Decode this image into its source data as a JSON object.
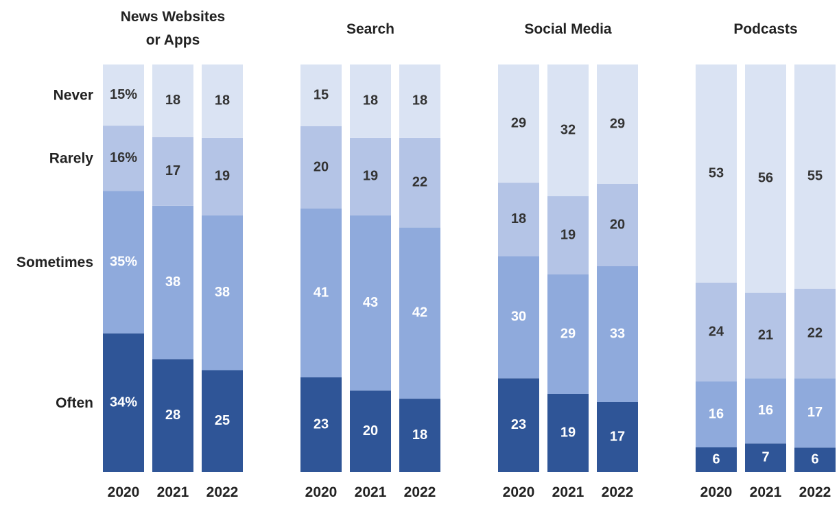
{
  "chart_data": {
    "type": "bar",
    "stacked": true,
    "categories_order_bottom_to_top": [
      "Often",
      "Sometimes",
      "Rarely",
      "Never"
    ],
    "colors": {
      "Often": "#2f5597",
      "Sometimes": "#8faadc",
      "Rarely": "#b4c4e6",
      "Never": "#dae3f3"
    },
    "label_colors": {
      "Often": "#ffffff",
      "Sometimes": "#ffffff",
      "Rarely": "#333333",
      "Never": "#333333"
    },
    "row_labels": [
      {
        "key": "Never",
        "text": "Never",
        "panel": 0,
        "year": 0
      },
      {
        "key": "Rarely",
        "text": "Rarely",
        "panel": 0,
        "year": 0
      },
      {
        "key": "Sometimes",
        "text": "Sometimes",
        "panel": 0,
        "year": 0
      },
      {
        "key": "Often",
        "text": "Often",
        "panel": 0,
        "year": 0
      }
    ],
    "panels": [
      {
        "title_lines": [
          "News Websites",
          "or Apps"
        ],
        "years": [
          "2020",
          "2021",
          "2022"
        ],
        "series": [
          {
            "name": "Often",
            "values": [
              34,
              28,
              25
            ]
          },
          {
            "name": "Sometimes",
            "values": [
              35,
              38,
              38
            ]
          },
          {
            "name": "Rarely",
            "values": [
              16,
              17,
              19
            ]
          },
          {
            "name": "Never",
            "values": [
              15,
              18,
              18
            ]
          }
        ],
        "first_column_labels": {
          "Often": "34%",
          "Sometimes": "35%",
          "Rarely": "16%",
          "Never": "15%"
        }
      },
      {
        "title_lines": [
          "Search"
        ],
        "years": [
          "2020",
          "2021",
          "2022"
        ],
        "series": [
          {
            "name": "Often",
            "values": [
              23,
              20,
              18
            ]
          },
          {
            "name": "Sometimes",
            "values": [
              41,
              43,
              42
            ]
          },
          {
            "name": "Rarely",
            "values": [
              20,
              19,
              22
            ]
          },
          {
            "name": "Never",
            "values": [
              15,
              18,
              18
            ]
          }
        ]
      },
      {
        "title_lines": [
          "Social Media"
        ],
        "years": [
          "2020",
          "2021",
          "2022"
        ],
        "series": [
          {
            "name": "Often",
            "values": [
              23,
              19,
              17
            ]
          },
          {
            "name": "Sometimes",
            "values": [
              30,
              29,
              33
            ]
          },
          {
            "name": "Rarely",
            "values": [
              18,
              19,
              20
            ]
          },
          {
            "name": "Never",
            "values": [
              29,
              32,
              29
            ]
          }
        ]
      },
      {
        "title_lines": [
          "Podcasts"
        ],
        "years": [
          "2020",
          "2021",
          "2022"
        ],
        "series": [
          {
            "name": "Often",
            "values": [
              6,
              7,
              6
            ]
          },
          {
            "name": "Sometimes",
            "values": [
              16,
              16,
              17
            ]
          },
          {
            "name": "Rarely",
            "values": [
              24,
              21,
              22
            ]
          },
          {
            "name": "Never",
            "values": [
              53,
              56,
              55
            ]
          }
        ]
      }
    ],
    "ylim": [
      0,
      100
    ],
    "legend": "none",
    "grid": false
  }
}
